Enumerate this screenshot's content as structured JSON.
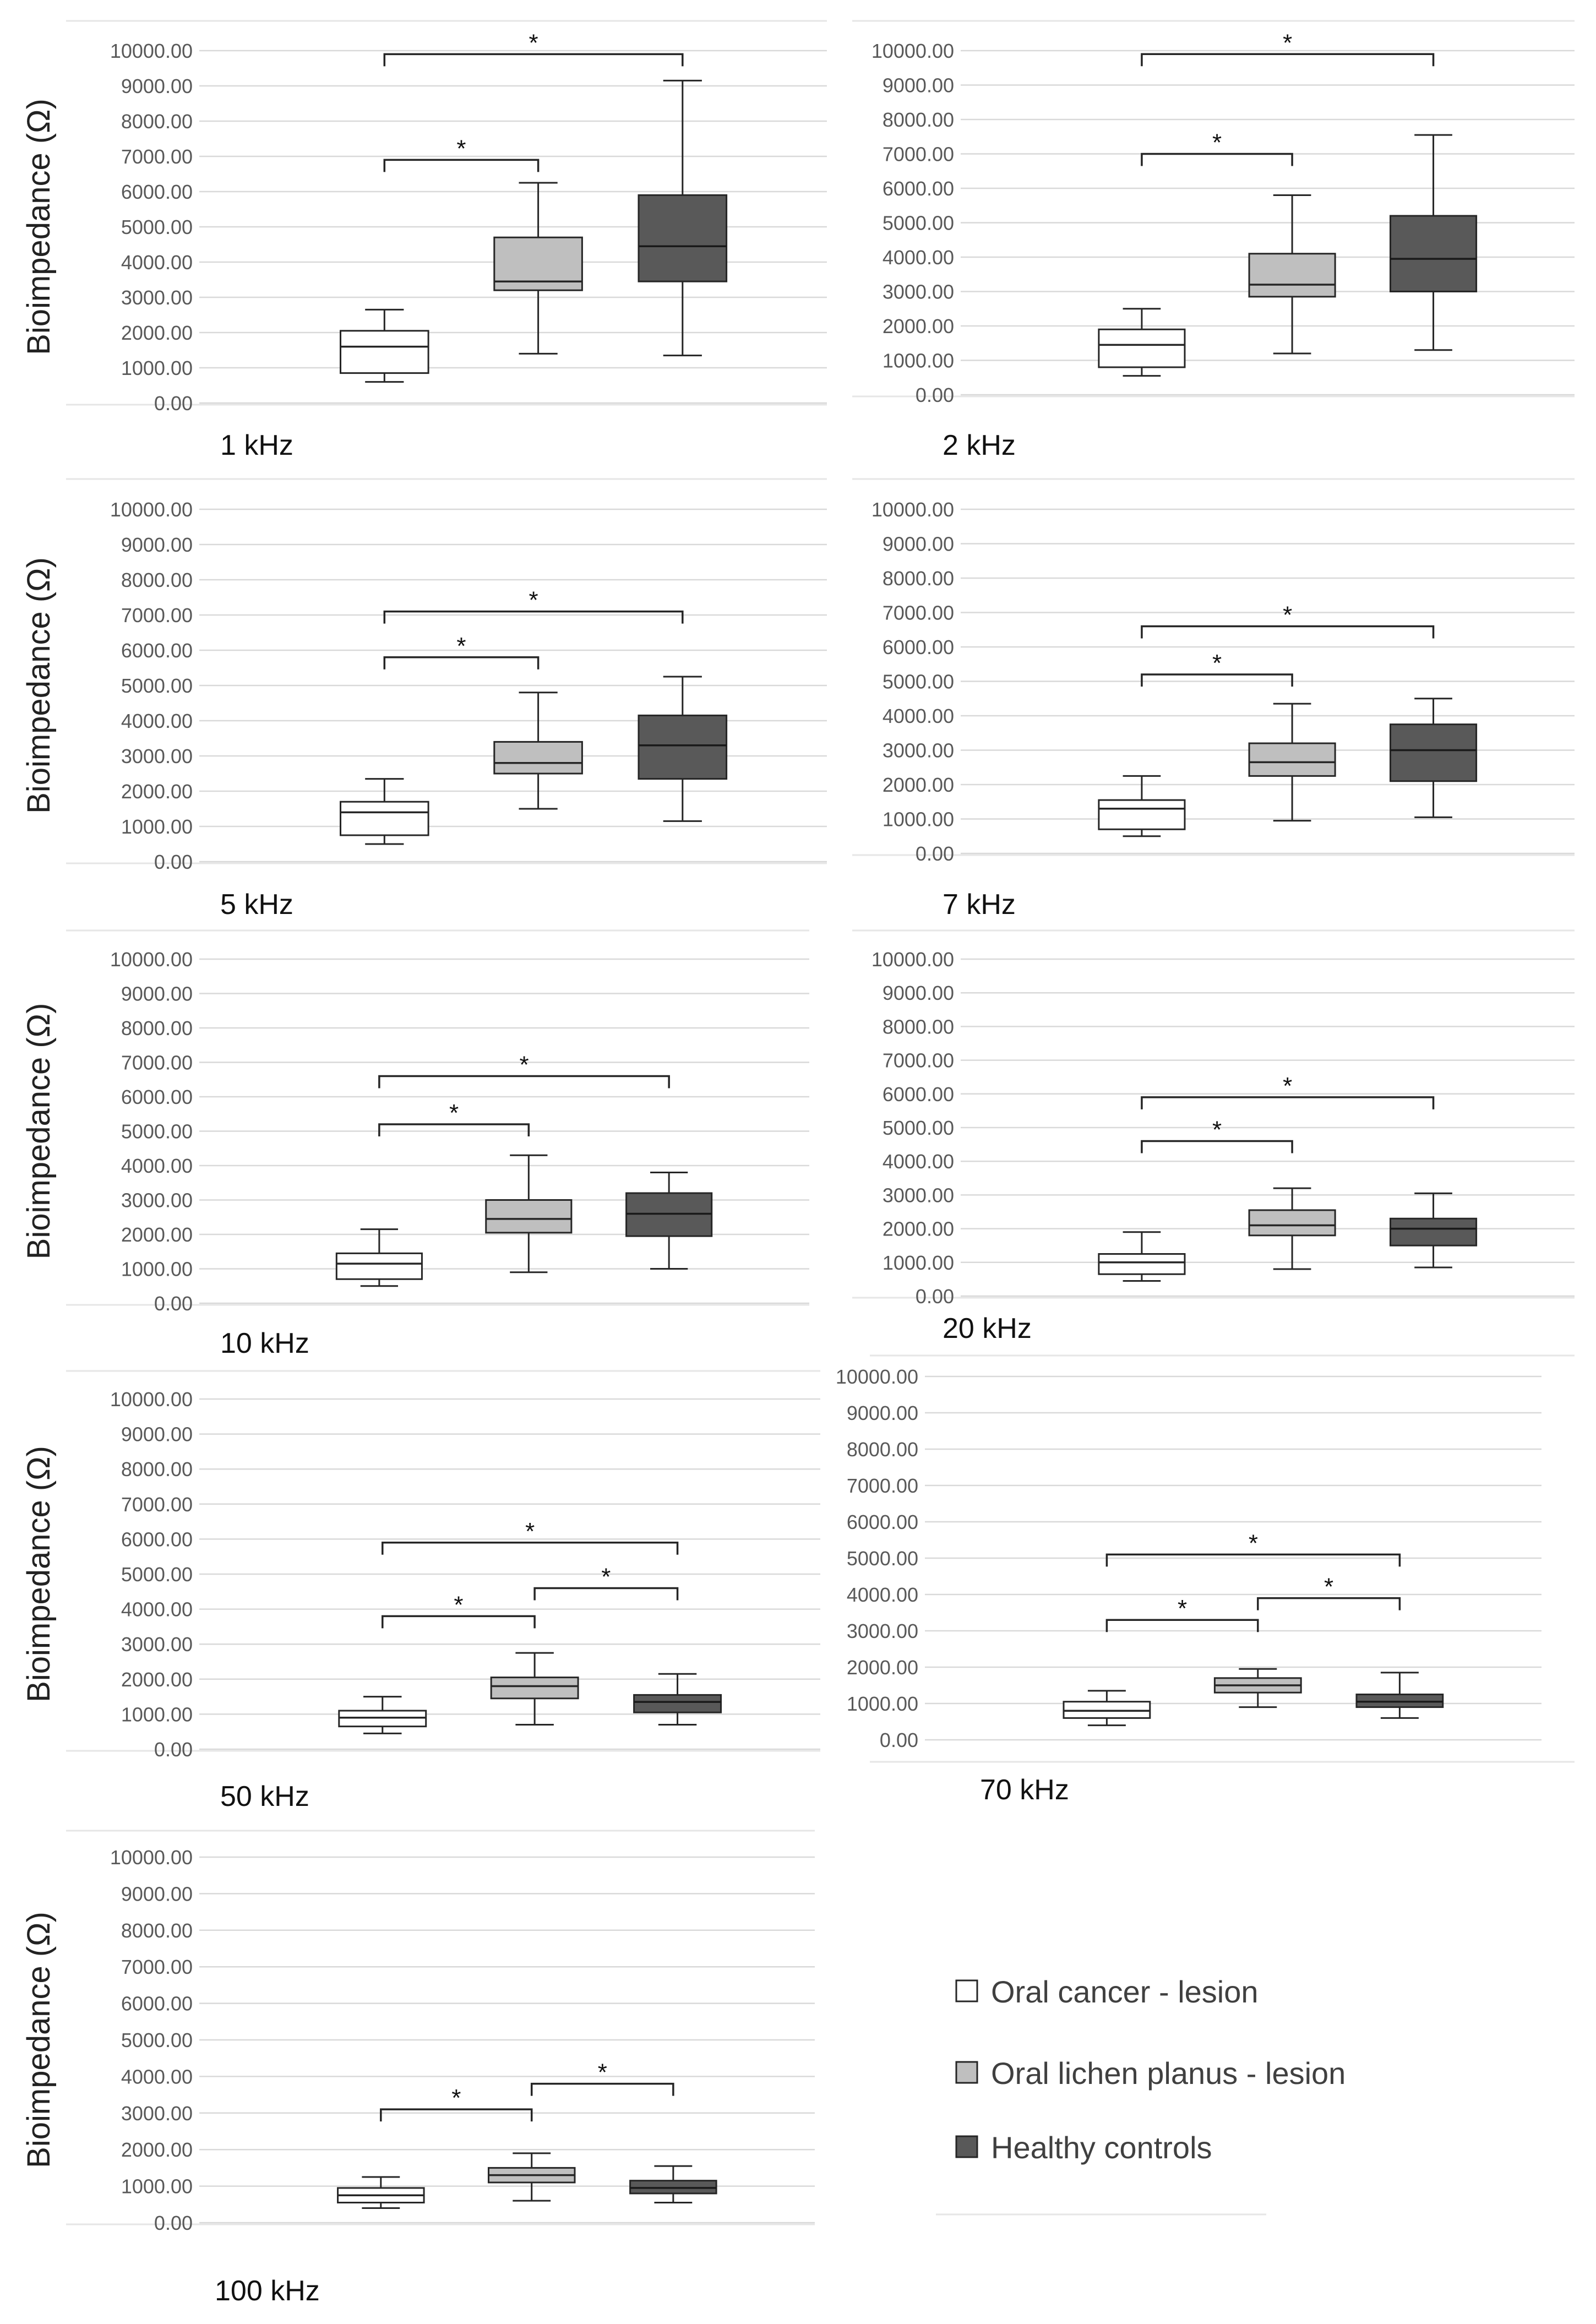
{
  "figure": {
    "y_axis_label": "Bioimpedance (Ω)",
    "y_ticks": [
      "0.00",
      "1000.00",
      "2000.00",
      "3000.00",
      "4000.00",
      "5000.00",
      "6000.00",
      "7000.00",
      "8000.00",
      "9000.00",
      "10000.00"
    ],
    "significance_marker": "*"
  },
  "legend": {
    "items": [
      {
        "label": "Oral cancer - lesion",
        "color": "#ffffff"
      },
      {
        "label": "Oral lichen planus - lesion",
        "color": "#bfbfbf"
      },
      {
        "label": "Healthy controls",
        "color": "#595959"
      }
    ]
  },
  "chart_data": [
    {
      "type": "boxplot",
      "title": "1 kHz",
      "ylabel": "Bioimpedance (Ω)",
      "ylim": [
        0,
        10000
      ],
      "categories": [
        "Oral cancer - lesion",
        "Oral lichen planus - lesion",
        "Healthy controls"
      ],
      "boxes": [
        {
          "min": 600,
          "q1": 850,
          "median": 1600,
          "q3": 2050,
          "max": 2650
        },
        {
          "min": 1400,
          "q1": 3200,
          "median": 3450,
          "q3": 4700,
          "max": 6250
        },
        {
          "min": 1350,
          "q1": 3450,
          "median": 4450,
          "q3": 5900,
          "max": 9150
        }
      ],
      "significance": [
        {
          "from": 0,
          "to": 1,
          "level": 6900
        },
        {
          "from": 0,
          "to": 2,
          "level": 9900
        }
      ]
    },
    {
      "type": "boxplot",
      "title": "2 kHz",
      "ylabel": "",
      "ylim": [
        0,
        10000
      ],
      "categories": [
        "Oral cancer - lesion",
        "Oral lichen planus - lesion",
        "Healthy controls"
      ],
      "boxes": [
        {
          "min": 550,
          "q1": 800,
          "median": 1450,
          "q3": 1900,
          "max": 2500
        },
        {
          "min": 1200,
          "q1": 2850,
          "median": 3200,
          "q3": 4100,
          "max": 5800
        },
        {
          "min": 1300,
          "q1": 3000,
          "median": 3950,
          "q3": 5200,
          "max": 7550
        }
      ],
      "significance": [
        {
          "from": 0,
          "to": 1,
          "level": 7000
        },
        {
          "from": 0,
          "to": 2,
          "level": 9900
        }
      ]
    },
    {
      "type": "boxplot",
      "title": "5 kHz",
      "ylabel": "Bioimpedance (Ω)",
      "ylim": [
        0,
        10000
      ],
      "categories": [
        "Oral cancer - lesion",
        "Oral lichen planus - lesion",
        "Healthy controls"
      ],
      "boxes": [
        {
          "min": 500,
          "q1": 750,
          "median": 1400,
          "q3": 1700,
          "max": 2350
        },
        {
          "min": 1500,
          "q1": 2500,
          "median": 2800,
          "q3": 3400,
          "max": 4800
        },
        {
          "min": 1150,
          "q1": 2350,
          "median": 3300,
          "q3": 4150,
          "max": 5250
        }
      ],
      "significance": [
        {
          "from": 0,
          "to": 1,
          "level": 5800
        },
        {
          "from": 0,
          "to": 2,
          "level": 7100
        }
      ]
    },
    {
      "type": "boxplot",
      "title": "7 kHz",
      "ylabel": "",
      "ylim": [
        0,
        10000
      ],
      "categories": [
        "Oral cancer - lesion",
        "Oral lichen planus - lesion",
        "Healthy controls"
      ],
      "boxes": [
        {
          "min": 500,
          "q1": 700,
          "median": 1300,
          "q3": 1550,
          "max": 2250
        },
        {
          "min": 950,
          "q1": 2250,
          "median": 2650,
          "q3": 3200,
          "max": 4350
        },
        {
          "min": 1050,
          "q1": 2100,
          "median": 3000,
          "q3": 3750,
          "max": 4500
        }
      ],
      "significance": [
        {
          "from": 0,
          "to": 1,
          "level": 5200
        },
        {
          "from": 0,
          "to": 2,
          "level": 6600
        }
      ]
    },
    {
      "type": "boxplot",
      "title": "10 kHz",
      "ylabel": "Bioimpedance (Ω)",
      "ylim": [
        0,
        10000
      ],
      "categories": [
        "Oral cancer - lesion",
        "Oral lichen planus - lesion",
        "Healthy controls"
      ],
      "boxes": [
        {
          "min": 500,
          "q1": 700,
          "median": 1150,
          "q3": 1450,
          "max": 2150
        },
        {
          "min": 900,
          "q1": 2050,
          "median": 2450,
          "q3": 3000,
          "max": 4300
        },
        {
          "min": 1000,
          "q1": 1950,
          "median": 2600,
          "q3": 3200,
          "max": 3800
        }
      ],
      "significance": [
        {
          "from": 0,
          "to": 1,
          "level": 5200
        },
        {
          "from": 0,
          "to": 2,
          "level": 6600
        }
      ]
    },
    {
      "type": "boxplot",
      "title": "20 kHz",
      "ylabel": "",
      "ylim": [
        0,
        10000
      ],
      "categories": [
        "Oral cancer - lesion",
        "Oral lichen planus - lesion",
        "Healthy controls"
      ],
      "boxes": [
        {
          "min": 450,
          "q1": 650,
          "median": 1000,
          "q3": 1250,
          "max": 1900
        },
        {
          "min": 800,
          "q1": 1800,
          "median": 2100,
          "q3": 2550,
          "max": 3200
        },
        {
          "min": 850,
          "q1": 1500,
          "median": 2000,
          "q3": 2300,
          "max": 3050
        }
      ],
      "significance": [
        {
          "from": 0,
          "to": 1,
          "level": 4600
        },
        {
          "from": 0,
          "to": 2,
          "level": 5900
        }
      ]
    },
    {
      "type": "boxplot",
      "title": "50 kHz",
      "ylabel": "Bioimpedance (Ω)",
      "ylim": [
        0,
        10000
      ],
      "categories": [
        "Oral cancer - lesion",
        "Oral lichen planus - lesion",
        "Healthy controls"
      ],
      "boxes": [
        {
          "min": 450,
          "q1": 650,
          "median": 900,
          "q3": 1100,
          "max": 1500
        },
        {
          "min": 700,
          "q1": 1450,
          "median": 1800,
          "q3": 2050,
          "max": 2750
        },
        {
          "min": 700,
          "q1": 1050,
          "median": 1350,
          "q3": 1550,
          "max": 2150
        }
      ],
      "significance": [
        {
          "from": 0,
          "to": 1,
          "level": 3800
        },
        {
          "from": 1,
          "to": 2,
          "level": 4600
        },
        {
          "from": 0,
          "to": 2,
          "level": 5900
        }
      ]
    },
    {
      "type": "boxplot",
      "title": "70 kHz",
      "ylabel": "",
      "ylim": [
        0,
        10000
      ],
      "categories": [
        "Oral cancer - lesion",
        "Oral lichen planus - lesion",
        "Healthy controls"
      ],
      "boxes": [
        {
          "min": 400,
          "q1": 600,
          "median": 800,
          "q3": 1050,
          "max": 1350
        },
        {
          "min": 900,
          "q1": 1300,
          "median": 1500,
          "q3": 1700,
          "max": 1950
        },
        {
          "min": 600,
          "q1": 900,
          "median": 1050,
          "q3": 1250,
          "max": 1850
        }
      ],
      "significance": [
        {
          "from": 0,
          "to": 1,
          "level": 3300
        },
        {
          "from": 1,
          "to": 2,
          "level": 3900
        },
        {
          "from": 0,
          "to": 2,
          "level": 5100
        }
      ]
    },
    {
      "type": "boxplot",
      "title": "100 kHz",
      "ylabel": "Bioimpedance (Ω)",
      "ylim": [
        0,
        10000
      ],
      "categories": [
        "Oral cancer - lesion",
        "Oral lichen planus - lesion",
        "Healthy controls"
      ],
      "boxes": [
        {
          "min": 400,
          "q1": 550,
          "median": 750,
          "q3": 950,
          "max": 1250
        },
        {
          "min": 600,
          "q1": 1100,
          "median": 1300,
          "q3": 1500,
          "max": 1900
        },
        {
          "min": 550,
          "q1": 800,
          "median": 950,
          "q3": 1150,
          "max": 1550
        }
      ],
      "significance": [
        {
          "from": 0,
          "to": 1,
          "level": 3100
        },
        {
          "from": 1,
          "to": 2,
          "level": 3800
        }
      ]
    }
  ]
}
